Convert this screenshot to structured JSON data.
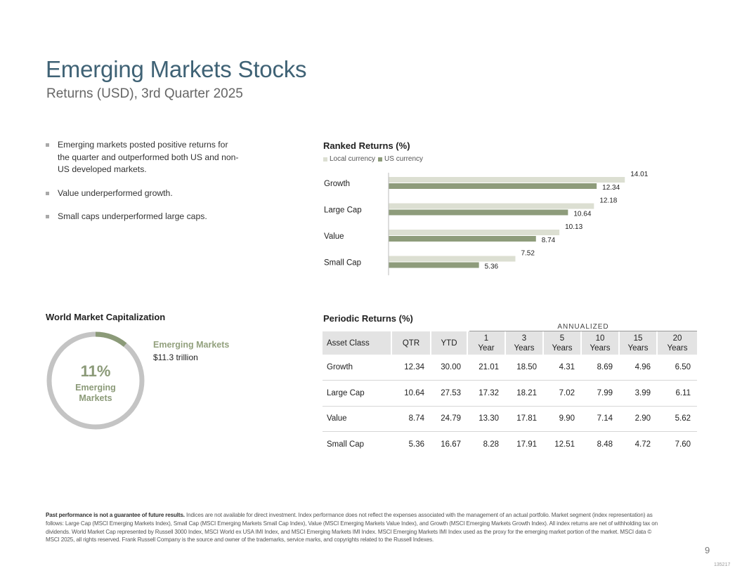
{
  "header": {
    "title": "Emerging Markets Stocks",
    "subtitle": "Returns (USD), 3rd Quarter 2025"
  },
  "bullets": [
    "Emerging markets posted positive returns for the quarter and outperformed both US and non-US developed markets.",
    "Value underperformed growth.",
    "Small caps underperformed large caps."
  ],
  "ranked_title": "Ranked Returns (%)",
  "market_cap": {
    "title": "World Market Capitalization",
    "percent": "11%",
    "label_line1": "Emerging",
    "label_line2": "Markets",
    "segment_name": "Emerging Markets",
    "segment_value": "$11.3 trillion",
    "share": 0.11,
    "colors": {
      "segment": "#8b9a78",
      "rest": "#c4c4c4"
    }
  },
  "periodic": {
    "title": "Periodic Returns (%)",
    "annualized_label": "ANNUALIZED",
    "headers": [
      [
        "Asset Class",
        ""
      ],
      [
        "QTR",
        ""
      ],
      [
        "YTD",
        ""
      ],
      [
        "1",
        "Year"
      ],
      [
        "3",
        "Years"
      ],
      [
        "5",
        "Years"
      ],
      [
        "10",
        "Years"
      ],
      [
        "15",
        "Years"
      ],
      [
        "20",
        "Years"
      ]
    ],
    "rows": [
      [
        "Growth",
        "12.34",
        "30.00",
        "21.01",
        "18.50",
        "4.31",
        "8.69",
        "4.96",
        "6.50"
      ],
      [
        "Large Cap",
        "10.64",
        "27.53",
        "17.32",
        "18.21",
        "7.02",
        "7.99",
        "3.99",
        "6.11"
      ],
      [
        "Value",
        "8.74",
        "24.79",
        "13.30",
        "17.81",
        "9.90",
        "7.14",
        "2.90",
        "5.62"
      ],
      [
        "Small Cap",
        "5.36",
        "16.67",
        "8.28",
        "17.91",
        "12.51",
        "8.48",
        "4.72",
        "7.60"
      ]
    ]
  },
  "chart_data": {
    "type": "bar",
    "orientation": "horizontal",
    "title": "Ranked Returns (%)",
    "categories": [
      "Growth",
      "Large Cap",
      "Value",
      "Small Cap"
    ],
    "series": [
      {
        "name": "Local currency",
        "values": [
          14.01,
          12.18,
          10.13,
          7.52
        ],
        "color": "#dcdfd2"
      },
      {
        "name": "US currency",
        "values": [
          12.34,
          10.64,
          8.74,
          5.36
        ],
        "color": "#8e9c7b"
      }
    ],
    "xlim": [
      0,
      15
    ],
    "legend": "top-left",
    "grid": false
  },
  "footer": {
    "disclaimer_bold": "Past performance is not a guarantee of future results.",
    "disclaimer": " Indices are not available for direct investment. Index performance does not reflect the expenses associated with the management of an actual portfolio. Market segment (index representation) as follows: Large Cap (MSCI Emerging Markets Index), Small Cap (MSCI Emerging Markets Small Cap Index), Value (MSCI Emerging Markets Value Index), and Growth (MSCI Emerging Markets Growth Index). All index returns are net of withholding tax on dividends. World Market Cap represented by Russell 3000 Index, MSCI World ex USA IMI Index, and MSCI Emerging Markets IMI Index. MSCI Emerging Markets IMI Index used as the proxy for the emerging market portion of the market. MSCI data © MSCI 2025, all rights reserved. Frank Russell Company is the source and owner of the trademarks, service marks, and copyrights related to the Russell Indexes.",
    "page_number": "9",
    "code": "135217"
  }
}
